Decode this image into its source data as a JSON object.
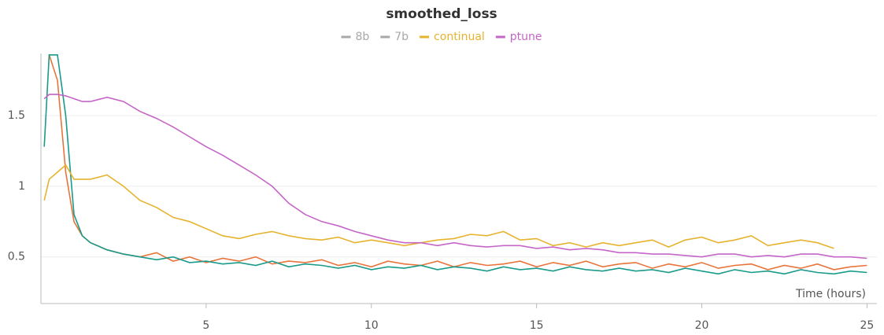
{
  "chart_data": {
    "type": "line",
    "title": "smoothed_loss",
    "x_label": "Time (hours)",
    "x": [
      0.1,
      0.25,
      0.5,
      0.75,
      1,
      1.25,
      1.5,
      2,
      2.5,
      3,
      3.5,
      4,
      4.5,
      5,
      5.5,
      6,
      6.5,
      7,
      7.5,
      8,
      8.5,
      9,
      9.5,
      10,
      10.5,
      11,
      11.5,
      12,
      12.5,
      13,
      13.5,
      14,
      14.5,
      15,
      15.5,
      16,
      16.5,
      17,
      17.5,
      18,
      18.5,
      19,
      19.5,
      20,
      20.5,
      21,
      21.5,
      22,
      22.5,
      23,
      23.5,
      24,
      24.5,
      25
    ],
    "series": [
      {
        "name": "8b",
        "color": "#e8743b",
        "legend_color": "#a8a8a8",
        "values": [
          null,
          1.93,
          1.75,
          1.1,
          0.75,
          0.65,
          0.6,
          0.55,
          0.52,
          0.5,
          0.53,
          0.47,
          0.5,
          0.46,
          0.49,
          0.47,
          0.5,
          0.45,
          0.47,
          0.46,
          0.48,
          0.44,
          0.46,
          0.43,
          0.47,
          0.45,
          0.44,
          0.47,
          0.43,
          0.46,
          0.44,
          0.45,
          0.47,
          0.43,
          0.46,
          0.44,
          0.47,
          0.43,
          0.45,
          0.46,
          0.42,
          0.45,
          0.43,
          0.46,
          0.42,
          0.44,
          0.45,
          0.41,
          0.44,
          0.42,
          0.45,
          0.41,
          0.43,
          0.44
        ]
      },
      {
        "name": "7b",
        "color": "#1a9a8a",
        "legend_color": "#a8a8a8",
        "values": [
          1.28,
          1.93,
          1.93,
          1.5,
          0.8,
          0.65,
          0.6,
          0.55,
          0.52,
          0.5,
          0.48,
          0.5,
          0.46,
          0.47,
          0.45,
          0.46,
          0.44,
          0.47,
          0.43,
          0.45,
          0.44,
          0.42,
          0.44,
          0.41,
          0.43,
          0.42,
          0.44,
          0.41,
          0.43,
          0.42,
          0.4,
          0.43,
          0.41,
          0.42,
          0.4,
          0.43,
          0.41,
          0.4,
          0.42,
          0.4,
          0.41,
          0.39,
          0.42,
          0.4,
          0.38,
          0.41,
          0.39,
          0.4,
          0.38,
          0.41,
          0.39,
          0.38,
          0.4,
          0.39
        ]
      },
      {
        "name": "continual",
        "color": "#e6b32e",
        "legend_color": "#e6b32e",
        "values": [
          0.9,
          1.05,
          1.1,
          1.15,
          1.05,
          1.05,
          1.05,
          1.08,
          1.0,
          0.9,
          0.85,
          0.78,
          0.75,
          0.7,
          0.65,
          0.63,
          0.66,
          0.68,
          0.65,
          0.63,
          0.62,
          0.64,
          0.6,
          0.62,
          0.6,
          0.58,
          0.6,
          0.62,
          0.63,
          0.66,
          0.65,
          0.68,
          0.62,
          0.63,
          0.58,
          0.6,
          0.57,
          0.6,
          0.58,
          0.6,
          0.62,
          0.57,
          0.62,
          0.64,
          0.6,
          0.62,
          0.65,
          0.58,
          0.6,
          0.62,
          0.6,
          0.56,
          null,
          null
        ]
      },
      {
        "name": "ptune",
        "color": "#c565c7",
        "legend_color": "#c565c7",
        "values": [
          1.62,
          1.65,
          1.65,
          1.64,
          1.62,
          1.6,
          1.6,
          1.63,
          1.6,
          1.53,
          1.48,
          1.42,
          1.35,
          1.28,
          1.22,
          1.15,
          1.08,
          1.0,
          0.88,
          0.8,
          0.75,
          0.72,
          0.68,
          0.65,
          0.62,
          0.6,
          0.6,
          0.58,
          0.6,
          0.58,
          0.57,
          0.58,
          0.58,
          0.56,
          0.57,
          0.55,
          0.56,
          0.55,
          0.53,
          0.53,
          0.52,
          0.52,
          0.51,
          0.5,
          0.52,
          0.52,
          0.5,
          0.51,
          0.5,
          0.52,
          0.52,
          0.5,
          0.5,
          0.49
        ]
      }
    ],
    "xlim": [
      0,
      25.3
    ],
    "ylim": [
      0.17,
      1.94
    ],
    "xticks": [
      5,
      10,
      15,
      20,
      25
    ],
    "yticks": [
      0.5,
      1,
      1.5
    ],
    "grid": true
  }
}
